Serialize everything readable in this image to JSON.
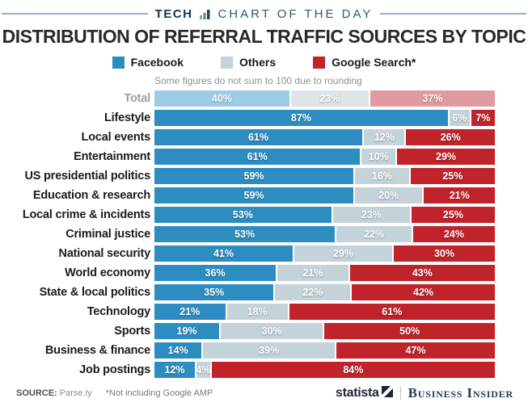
{
  "header": {
    "kicker_left": "TECH",
    "kicker_right": "CHART OF THE DAY"
  },
  "title": "DISTRIBUTION OF REFERRAL TRAFFIC SOURCES BY TOPIC",
  "note": "Some figures do not sum to 100 due to rounding",
  "legend": [
    {
      "label": "Facebook",
      "color": "#2d8dc1"
    },
    {
      "label": "Others",
      "color": "#c4d3da"
    },
    {
      "label": "Google Search*",
      "color": "#c0232a"
    }
  ],
  "chart_data": {
    "type": "bar",
    "orientation": "horizontal",
    "stacked": true,
    "unit": "%",
    "title": "Distribution of referral traffic sources by topic",
    "series_names": [
      "Facebook",
      "Others",
      "Google Search*"
    ],
    "colors": {
      "normal": [
        "#2d8dc1",
        "#c4d3da",
        "#c0232a"
      ],
      "muted": [
        "#9dcde5",
        "#dde5e9",
        "#e09ba0"
      ]
    },
    "categories": [
      "Total",
      "Lifestyle",
      "Local events",
      "Entertainment",
      "US presidential politics",
      "Education & research",
      "Local crime & incidents",
      "Criminal justice",
      "National security",
      "World economy",
      "State & local politics",
      "Technology",
      "Sports",
      "Business & finance",
      "Job postings"
    ],
    "rows": [
      {
        "label": "Total",
        "values": [
          40,
          23,
          37
        ],
        "muted": true
      },
      {
        "label": "Lifestyle",
        "values": [
          87,
          6,
          7
        ],
        "muted": false
      },
      {
        "label": "Local events",
        "values": [
          61,
          12,
          26
        ],
        "muted": false
      },
      {
        "label": "Entertainment",
        "values": [
          61,
          10,
          29
        ],
        "muted": false
      },
      {
        "label": "US presidential politics",
        "values": [
          59,
          16,
          25
        ],
        "muted": false
      },
      {
        "label": "Education & research",
        "values": [
          59,
          20,
          21
        ],
        "muted": false
      },
      {
        "label": "Local crime & incidents",
        "values": [
          53,
          23,
          25
        ],
        "muted": false
      },
      {
        "label": "Criminal justice",
        "values": [
          53,
          22,
          24
        ],
        "muted": false
      },
      {
        "label": "National security",
        "values": [
          41,
          29,
          30
        ],
        "muted": false
      },
      {
        "label": "World economy",
        "values": [
          36,
          21,
          43
        ],
        "muted": false
      },
      {
        "label": "State & local politics",
        "values": [
          35,
          22,
          42
        ],
        "muted": false
      },
      {
        "label": "Technology",
        "values": [
          21,
          18,
          61
        ],
        "muted": false
      },
      {
        "label": "Sports",
        "values": [
          19,
          30,
          50
        ],
        "muted": false
      },
      {
        "label": "Business & finance",
        "values": [
          14,
          39,
          47
        ],
        "muted": false
      },
      {
        "label": "Job postings",
        "values": [
          12,
          4,
          84
        ],
        "muted": false
      }
    ]
  },
  "footer": {
    "source_label": "SOURCE:",
    "source_value": "Parse.ly",
    "footnote": "*Not including Google AMP",
    "brand_statista": "statista",
    "brand_business_insider": "Business Insider"
  }
}
